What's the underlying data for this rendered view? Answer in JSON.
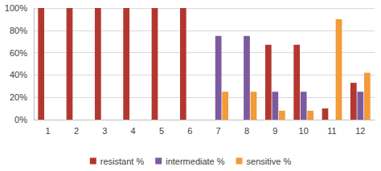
{
  "chart_data": {
    "type": "bar",
    "categories": [
      "1",
      "2",
      "3",
      "4",
      "5",
      "6",
      "7",
      "8",
      "9",
      "10",
      "11",
      "12"
    ],
    "series": [
      {
        "name": "resistant %",
        "color": "#b3372f",
        "values": [
          100,
          100,
          100,
          100,
          100,
          100,
          0,
          0,
          67,
          67,
          10,
          33
        ]
      },
      {
        "name": "intermediate %",
        "color": "#7d5a9f",
        "values": [
          0,
          0,
          0,
          0,
          0,
          0,
          75,
          75,
          25,
          25,
          0,
          25
        ]
      },
      {
        "name": "sensitive %",
        "color": "#f29b38",
        "values": [
          0,
          0,
          0,
          0,
          0,
          0,
          25,
          25,
          8,
          8,
          90,
          42
        ]
      }
    ],
    "ylim": [
      0,
      100
    ],
    "yticks": [
      {
        "value": 0,
        "label": "0%"
      },
      {
        "value": 20,
        "label": "20%"
      },
      {
        "value": 40,
        "label": "40%"
      },
      {
        "value": 60,
        "label": "60%"
      },
      {
        "value": 80,
        "label": "80%"
      },
      {
        "value": 100,
        "label": "100%"
      }
    ],
    "grid": true,
    "legend": "bottom"
  }
}
